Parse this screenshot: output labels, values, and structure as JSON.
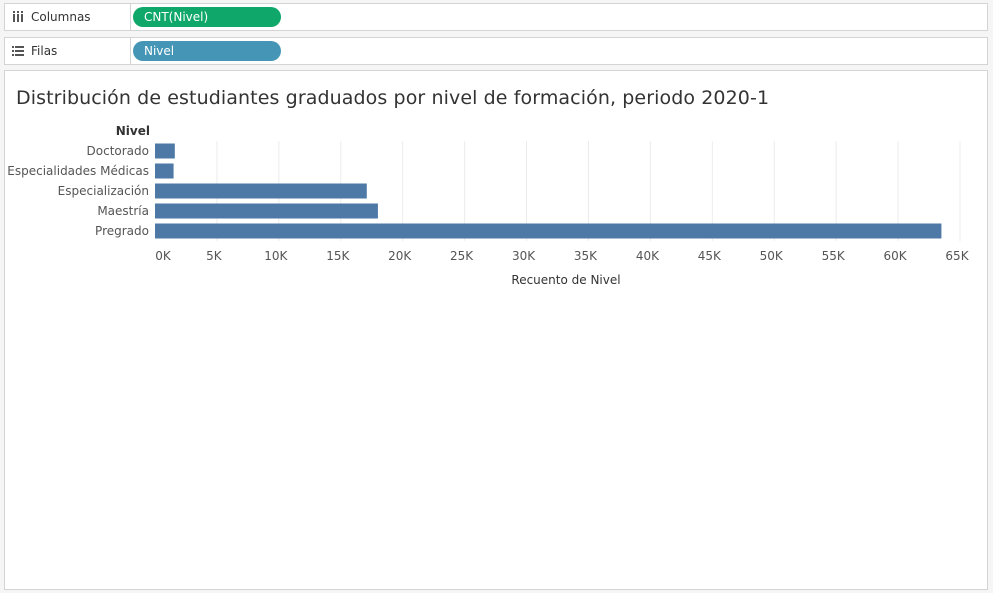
{
  "shelves": {
    "columns": {
      "label": "Columnas",
      "pill": "CNT(Nivel)",
      "pill_color": "#10a86a"
    },
    "rows": {
      "label": "Filas",
      "pill": "Nivel",
      "pill_color": "#4596b6"
    }
  },
  "chart_data": {
    "type": "bar",
    "orientation": "horizontal",
    "title": "Distribución de estudiantes graduados por nivel de formación, periodo 2020-1",
    "category_header": "Nivel",
    "categories": [
      "Doctorado",
      "Especialidades Médicas",
      "Especialización",
      "Maestría",
      "Pregrado"
    ],
    "values": [
      1600,
      1500,
      17100,
      18000,
      63500
    ],
    "xlabel": "Recuento de Nivel",
    "xlim": [
      0,
      65000
    ],
    "x_ticks": [
      0,
      5000,
      10000,
      15000,
      20000,
      25000,
      30000,
      35000,
      40000,
      45000,
      50000,
      55000,
      60000,
      65000
    ],
    "x_tick_labels": [
      "0K",
      "5K",
      "10K",
      "15K",
      "20K",
      "25K",
      "30K",
      "35K",
      "40K",
      "45K",
      "50K",
      "55K",
      "60K",
      "65K"
    ],
    "bar_color": "#4e79a7",
    "grid": "vertical"
  }
}
